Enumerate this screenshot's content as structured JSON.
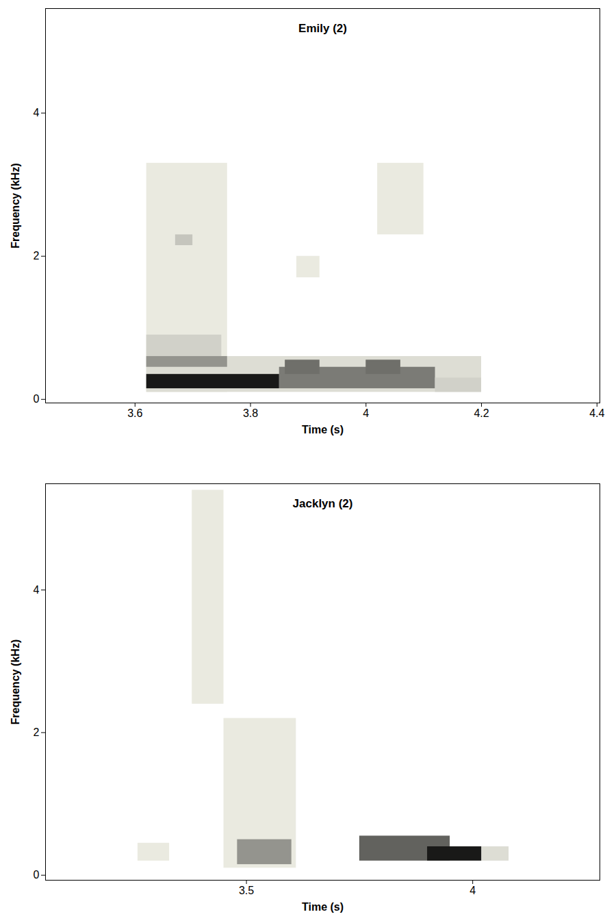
{
  "chart_data": [
    {
      "type": "heatmap",
      "title": "Emily (2)",
      "x_label": "Time (s)",
      "y_label": "Frequency (kHz)",
      "xlim": [
        3.445,
        4.405
      ],
      "xticks": [
        3.6,
        3.8,
        4,
        4.2,
        4.4
      ],
      "ylim": [
        -0.05,
        5.46
      ],
      "yticks": [
        0,
        2,
        4
      ],
      "zlim": [
        0,
        1
      ],
      "cells": [
        {
          "x1": 3.62,
          "x2": 3.76,
          "y1": 0.1,
          "y2": 3.3,
          "value": 0.05
        },
        {
          "x1": 4.02,
          "x2": 4.1,
          "y1": 2.3,
          "y2": 3.3,
          "value": 0.05
        },
        {
          "x1": 3.88,
          "x2": 3.92,
          "y1": 1.7,
          "y2": 2.0,
          "value": 0.05
        },
        {
          "x1": 3.67,
          "x2": 3.7,
          "y1": 2.15,
          "y2": 2.3,
          "value": 0.2
        },
        {
          "x1": 3.62,
          "x2": 3.75,
          "y1": 0.6,
          "y2": 0.9,
          "value": 0.15
        },
        {
          "x1": 3.62,
          "x2": 4.2,
          "y1": 0.1,
          "y2": 0.6,
          "value": 0.1
        },
        {
          "x1": 3.62,
          "x2": 3.76,
          "y1": 0.45,
          "y2": 0.6,
          "value": 0.4
        },
        {
          "x1": 3.85,
          "x2": 4.12,
          "y1": 0.15,
          "y2": 0.45,
          "value": 0.5
        },
        {
          "x1": 3.86,
          "x2": 3.92,
          "y1": 0.35,
          "y2": 0.55,
          "value": 0.55
        },
        {
          "x1": 4.0,
          "x2": 4.06,
          "y1": 0.35,
          "y2": 0.55,
          "value": 0.55
        },
        {
          "x1": 4.12,
          "x2": 4.2,
          "y1": 0.1,
          "y2": 0.3,
          "value": 0.15
        },
        {
          "x1": 3.62,
          "x2": 3.85,
          "y1": 0.15,
          "y2": 0.35,
          "value": 0.9
        }
      ]
    },
    {
      "type": "heatmap",
      "title": "Jacklyn (2)",
      "x_label": "Time (s)",
      "y_label": "Frequency (kHz)",
      "xlim": [
        3.056,
        4.281
      ],
      "xticks": [
        3.5,
        4
      ],
      "ylim": [
        -0.07,
        5.49
      ],
      "yticks": [
        0,
        2,
        4
      ],
      "zlim": [
        0,
        1
      ],
      "cells": [
        {
          "x1": 3.38,
          "x2": 3.45,
          "y1": 2.4,
          "y2": 5.4,
          "value": 0.05
        },
        {
          "x1": 3.26,
          "x2": 3.33,
          "y1": 0.2,
          "y2": 0.45,
          "value": 0.05
        },
        {
          "x1": 3.45,
          "x2": 3.61,
          "y1": 0.1,
          "y2": 2.2,
          "value": 0.05
        },
        {
          "x1": 3.48,
          "x2": 3.6,
          "y1": 0.15,
          "y2": 0.5,
          "value": 0.4
        },
        {
          "x1": 3.75,
          "x2": 3.95,
          "y1": 0.2,
          "y2": 0.55,
          "value": 0.6
        },
        {
          "x1": 3.9,
          "x2": 4.02,
          "y1": 0.2,
          "y2": 0.4,
          "value": 0.9
        },
        {
          "x1": 4.02,
          "x2": 4.08,
          "y1": 0.2,
          "y2": 0.4,
          "value": 0.1
        }
      ]
    }
  ]
}
